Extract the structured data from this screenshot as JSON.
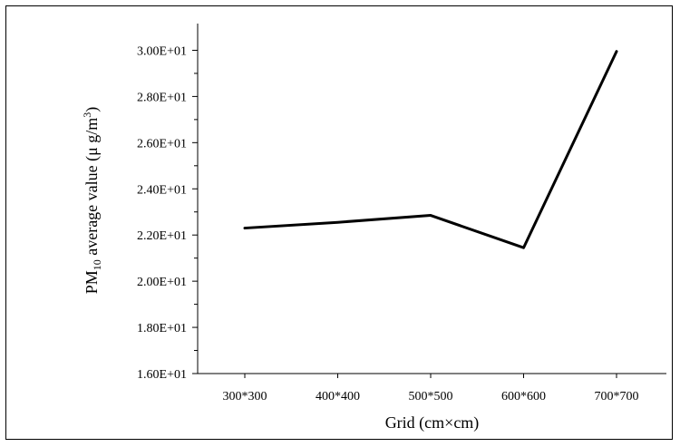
{
  "chart_data": {
    "type": "line",
    "title": "",
    "xlabel": "Grid (cm×cm)",
    "ylabel": {
      "prefix": "PM",
      "subscript": "10",
      "rest": " average value (μ g/m",
      "superscript": "3",
      "suffix": ")"
    },
    "categories": [
      "300*300",
      "400*400",
      "500*500",
      "600*600",
      "700*700"
    ],
    "series": [
      {
        "values": [
          22.3,
          22.55,
          22.85,
          21.45,
          29.95
        ]
      }
    ],
    "ylim": [
      16,
      31
    ],
    "yticks": [
      {
        "value": 16,
        "label": "1.60E+01"
      },
      {
        "value": 18,
        "label": "1.80E+01"
      },
      {
        "value": 20,
        "label": "2.00E+01"
      },
      {
        "value": 22,
        "label": "2.20E+01"
      },
      {
        "value": 24,
        "label": "2.40E+01"
      },
      {
        "value": 26,
        "label": "2.60E+01"
      },
      {
        "value": 28,
        "label": "2.80E+01"
      },
      {
        "value": 30,
        "label": "3.00E+01"
      }
    ],
    "grid": false,
    "line_color": "#000000"
  }
}
